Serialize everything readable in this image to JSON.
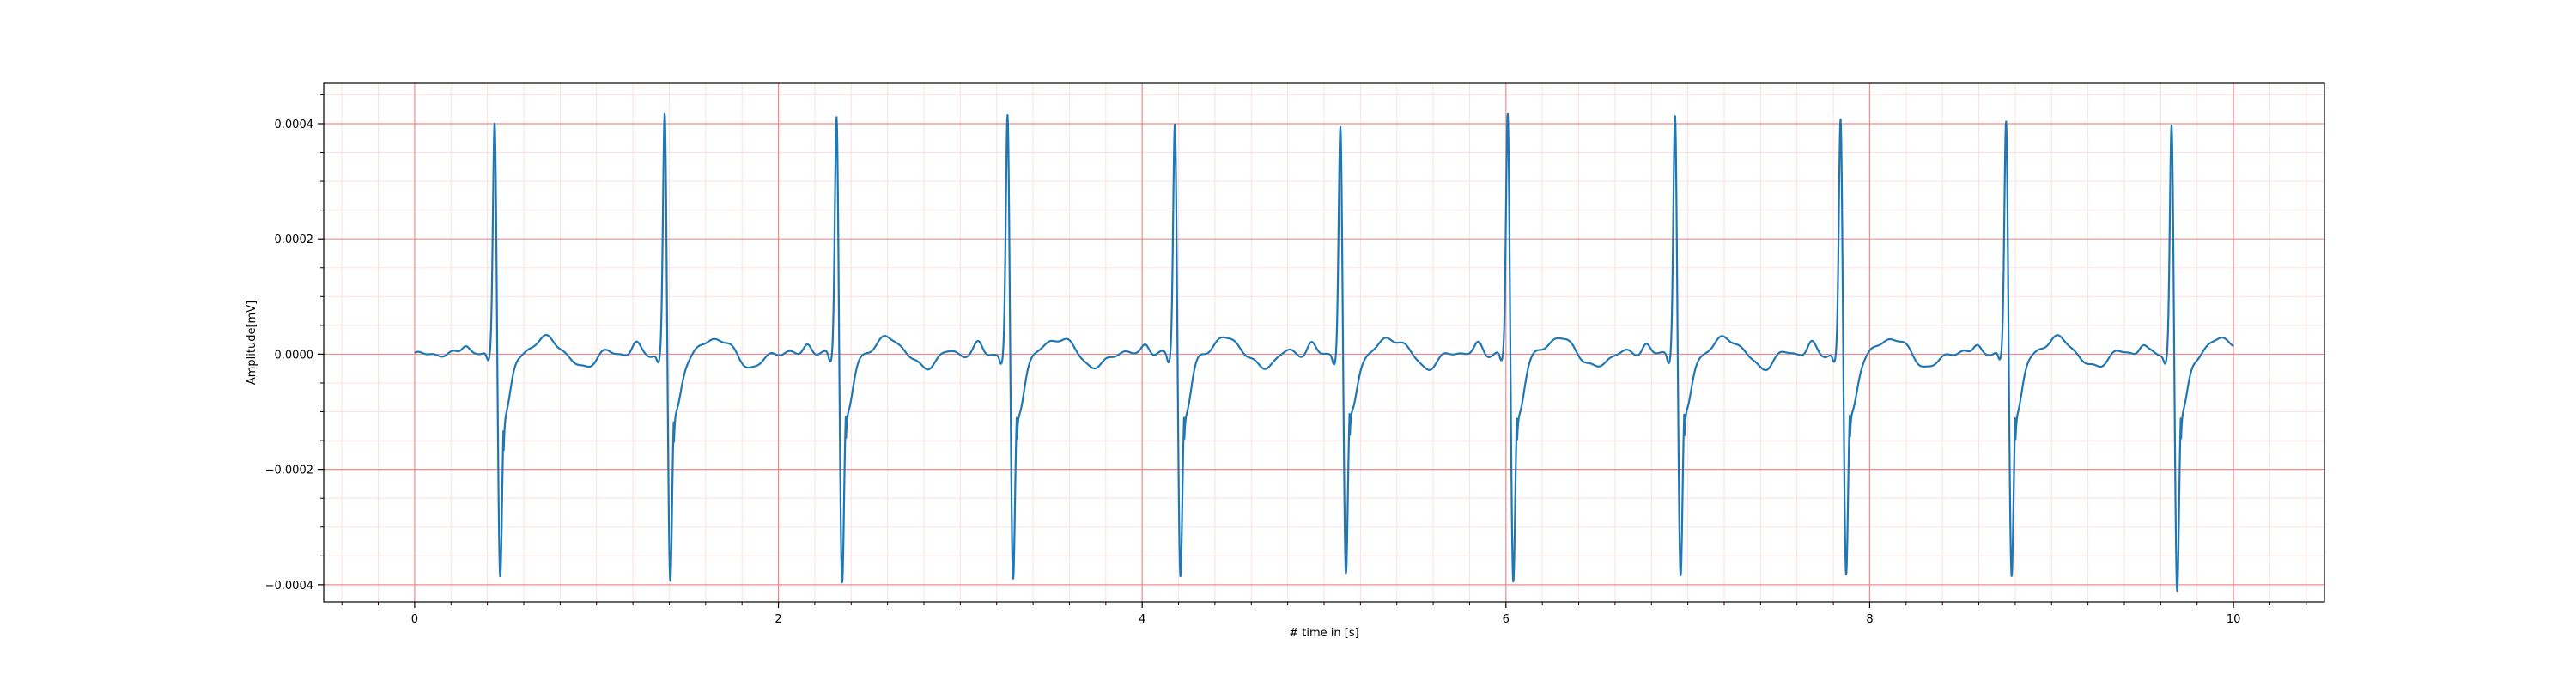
{
  "chart_data": {
    "type": "line",
    "title": "",
    "xlabel": "# time in [s]",
    "ylabel": "Amplitude[mV]",
    "xlim": [
      -0.5,
      10.5
    ],
    "ylim": [
      -0.00043,
      0.00047
    ],
    "xticks": [
      0,
      2,
      4,
      6,
      8,
      10
    ],
    "xtick_labels": [
      "0",
      "2",
      "4",
      "6",
      "8",
      "10"
    ],
    "yticks": [
      -0.0004,
      -0.0002,
      0.0,
      0.0002,
      0.0004
    ],
    "ytick_labels": [
      "−0.0004",
      "−0.0002",
      "0.0000",
      "0.0002",
      "0.0004"
    ],
    "grid": {
      "major": true,
      "minor": true,
      "major_color": "#f28a8a",
      "minor_color": "#fde0e0"
    },
    "legend": "none",
    "series_color": "#1f77b4",
    "duration_s": 10,
    "beats": [
      {
        "r_time": 0.44,
        "r_peak": 0.00041,
        "s_trough": -0.00036
      },
      {
        "r_time": 1.375,
        "r_peak": 0.000425,
        "s_trough": -0.000375
      },
      {
        "r_time": 2.32,
        "r_peak": 0.000425,
        "s_trough": -0.000375
      },
      {
        "r_time": 3.26,
        "r_peak": 0.00042,
        "s_trough": -0.000375
      },
      {
        "r_time": 4.18,
        "r_peak": 0.00041,
        "s_trough": -0.000365
      },
      {
        "r_time": 5.09,
        "r_peak": 0.000405,
        "s_trough": -0.000365
      },
      {
        "r_time": 6.01,
        "r_peak": 0.000425,
        "s_trough": -0.000375
      },
      {
        "r_time": 6.93,
        "r_peak": 0.000427,
        "s_trough": -0.000365
      },
      {
        "r_time": 7.84,
        "r_peak": 0.000415,
        "s_trough": -0.000365
      },
      {
        "r_time": 8.75,
        "r_peak": 0.000413,
        "s_trough": -0.00036
      },
      {
        "r_time": 9.66,
        "r_peak": 0.000407,
        "s_trough": -0.00039
      }
    ]
  }
}
